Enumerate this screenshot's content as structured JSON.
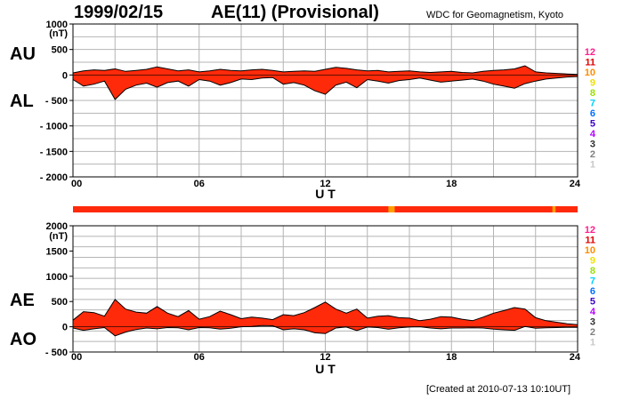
{
  "header": {
    "date": "1999/02/15",
    "title": "AE(11) (Provisional)",
    "source": "WDC for Geomagnetism, Kyoto"
  },
  "footer": {
    "created": "[Created at 2010-07-13 10:10UT]"
  },
  "legend": {
    "stations": [
      "12",
      "11",
      "10",
      "9",
      "8",
      "7",
      "6",
      "5",
      "4",
      "3",
      "2",
      "1"
    ],
    "colors": [
      "#ff1e8c",
      "#e00000",
      "#ff8c00",
      "#f0e000",
      "#9be000",
      "#00d2ff",
      "#0070ff",
      "#3c00c8",
      "#b400ff",
      "#303030",
      "#808080",
      "#c8c8c8"
    ]
  },
  "chart_data": [
    {
      "type": "area",
      "name": "AU/AL",
      "labels": {
        "upper": "AU",
        "lower": "AL"
      },
      "unit": "(nT)",
      "xlabel": "U T",
      "xlim": [
        0,
        24
      ],
      "ylim": [
        -2000,
        1000
      ],
      "x_ticks": [
        "00",
        "06",
        "12",
        "18",
        "24"
      ],
      "y_ticks": [
        "1000",
        "500",
        "0",
        "- 500",
        "- 1000",
        "- 1500",
        "- 2000"
      ],
      "fill_color": "#ff2a0a",
      "grid": true,
      "series": [
        {
          "name": "AU",
          "x": [
            0,
            0.5,
            1,
            1.5,
            2,
            2.5,
            3,
            3.5,
            4,
            4.5,
            5,
            5.5,
            6,
            6.5,
            7,
            7.5,
            8,
            8.5,
            9,
            9.5,
            10,
            10.5,
            11,
            11.5,
            12,
            12.5,
            13,
            13.5,
            14,
            14.5,
            15,
            15.5,
            16,
            16.5,
            17,
            17.5,
            18,
            18.5,
            19,
            19.5,
            20,
            20.5,
            21,
            21.5,
            22,
            22.5,
            23,
            23.5,
            24
          ],
          "y": [
            40,
            80,
            100,
            90,
            120,
            70,
            90,
            110,
            160,
            120,
            80,
            100,
            60,
            80,
            110,
            90,
            80,
            100,
            110,
            90,
            60,
            70,
            80,
            70,
            110,
            150,
            130,
            100,
            80,
            90,
            60,
            70,
            80,
            60,
            50,
            60,
            70,
            50,
            40,
            70,
            90,
            100,
            120,
            180,
            60,
            40,
            30,
            20,
            10
          ]
        },
        {
          "name": "AL",
          "x": [
            0,
            0.5,
            1,
            1.5,
            2,
            2.5,
            3,
            3.5,
            4,
            4.5,
            5,
            5.5,
            6,
            6.5,
            7,
            7.5,
            8,
            8.5,
            9,
            9.5,
            10,
            10.5,
            11,
            11.5,
            12,
            12.5,
            13,
            13.5,
            14,
            14.5,
            15,
            15.5,
            16,
            16.5,
            17,
            17.5,
            18,
            18.5,
            19,
            19.5,
            20,
            20.5,
            21,
            21.5,
            22,
            22.5,
            23,
            23.5,
            24
          ],
          "y": [
            -90,
            -220,
            -180,
            -120,
            -480,
            -280,
            -200,
            -160,
            -240,
            -150,
            -120,
            -220,
            -90,
            -120,
            -200,
            -150,
            -80,
            -90,
            -60,
            -50,
            -180,
            -150,
            -200,
            -310,
            -380,
            -200,
            -140,
            -250,
            -90,
            -120,
            -160,
            -110,
            -90,
            -60,
            -100,
            -140,
            -120,
            -100,
            -80,
            -120,
            -180,
            -220,
            -260,
            -170,
            -120,
            -80,
            -60,
            -40,
            -30
          ]
        }
      ]
    },
    {
      "type": "area",
      "name": "AE/AO",
      "labels": {
        "upper": "AE",
        "lower": "AO"
      },
      "unit": "(nT)",
      "xlabel": "U T",
      "xlim": [
        0,
        24
      ],
      "ylim": [
        -500,
        2000
      ],
      "x_ticks": [
        "00",
        "06",
        "12",
        "18",
        "24"
      ],
      "y_ticks": [
        "2000",
        "1500",
        "1000",
        "500",
        "0",
        "- 500"
      ],
      "fill_color": "#ff2a0a",
      "grid": true,
      "series": [
        {
          "name": "AE",
          "x": [
            0,
            0.5,
            1,
            1.5,
            2,
            2.5,
            3,
            3.5,
            4,
            4.5,
            5,
            5.5,
            6,
            6.5,
            7,
            7.5,
            8,
            8.5,
            9,
            9.5,
            10,
            10.5,
            11,
            11.5,
            12,
            12.5,
            13,
            13.5,
            14,
            14.5,
            15,
            15.5,
            16,
            16.5,
            17,
            17.5,
            18,
            18.5,
            19,
            19.5,
            20,
            20.5,
            21,
            21.5,
            22,
            22.5,
            23,
            23.5,
            24
          ],
          "y": [
            130,
            300,
            280,
            210,
            540,
            350,
            290,
            270,
            400,
            270,
            200,
            320,
            150,
            200,
            310,
            240,
            160,
            190,
            170,
            140,
            240,
            220,
            280,
            380,
            490,
            350,
            270,
            350,
            170,
            210,
            220,
            180,
            170,
            120,
            150,
            200,
            190,
            150,
            120,
            190,
            270,
            320,
            380,
            350,
            180,
            120,
            90,
            60,
            40
          ]
        },
        {
          "name": "AO",
          "x": [
            0,
            0.5,
            1,
            1.5,
            2,
            2.5,
            3,
            3.5,
            4,
            4.5,
            5,
            5.5,
            6,
            6.5,
            7,
            7.5,
            8,
            8.5,
            9,
            9.5,
            10,
            10.5,
            11,
            11.5,
            12,
            12.5,
            13,
            13.5,
            14,
            14.5,
            15,
            15.5,
            16,
            16.5,
            17,
            17.5,
            18,
            18.5,
            19,
            19.5,
            20,
            20.5,
            21,
            21.5,
            22,
            22.5,
            23,
            23.5,
            24
          ],
          "y": [
            -25,
            -70,
            -40,
            -15,
            -180,
            -105,
            -55,
            -25,
            -40,
            -15,
            -20,
            -60,
            -15,
            -20,
            -45,
            -30,
            0,
            5,
            25,
            20,
            -60,
            -40,
            -60,
            -120,
            -135,
            -25,
            -5,
            -75,
            -5,
            -15,
            -50,
            -20,
            -5,
            0,
            -25,
            -40,
            -25,
            -25,
            -20,
            -25,
            -45,
            -60,
            -70,
            5,
            -30,
            -20,
            -15,
            -10,
            -10
          ]
        }
      ]
    }
  ],
  "station_bar": {
    "main_color": "#ff2a0a",
    "highlights": [
      {
        "from": 15.0,
        "to": 15.3,
        "color": "#ffa000"
      },
      {
        "from": 22.8,
        "to": 22.95,
        "color": "#ffa000"
      }
    ]
  }
}
